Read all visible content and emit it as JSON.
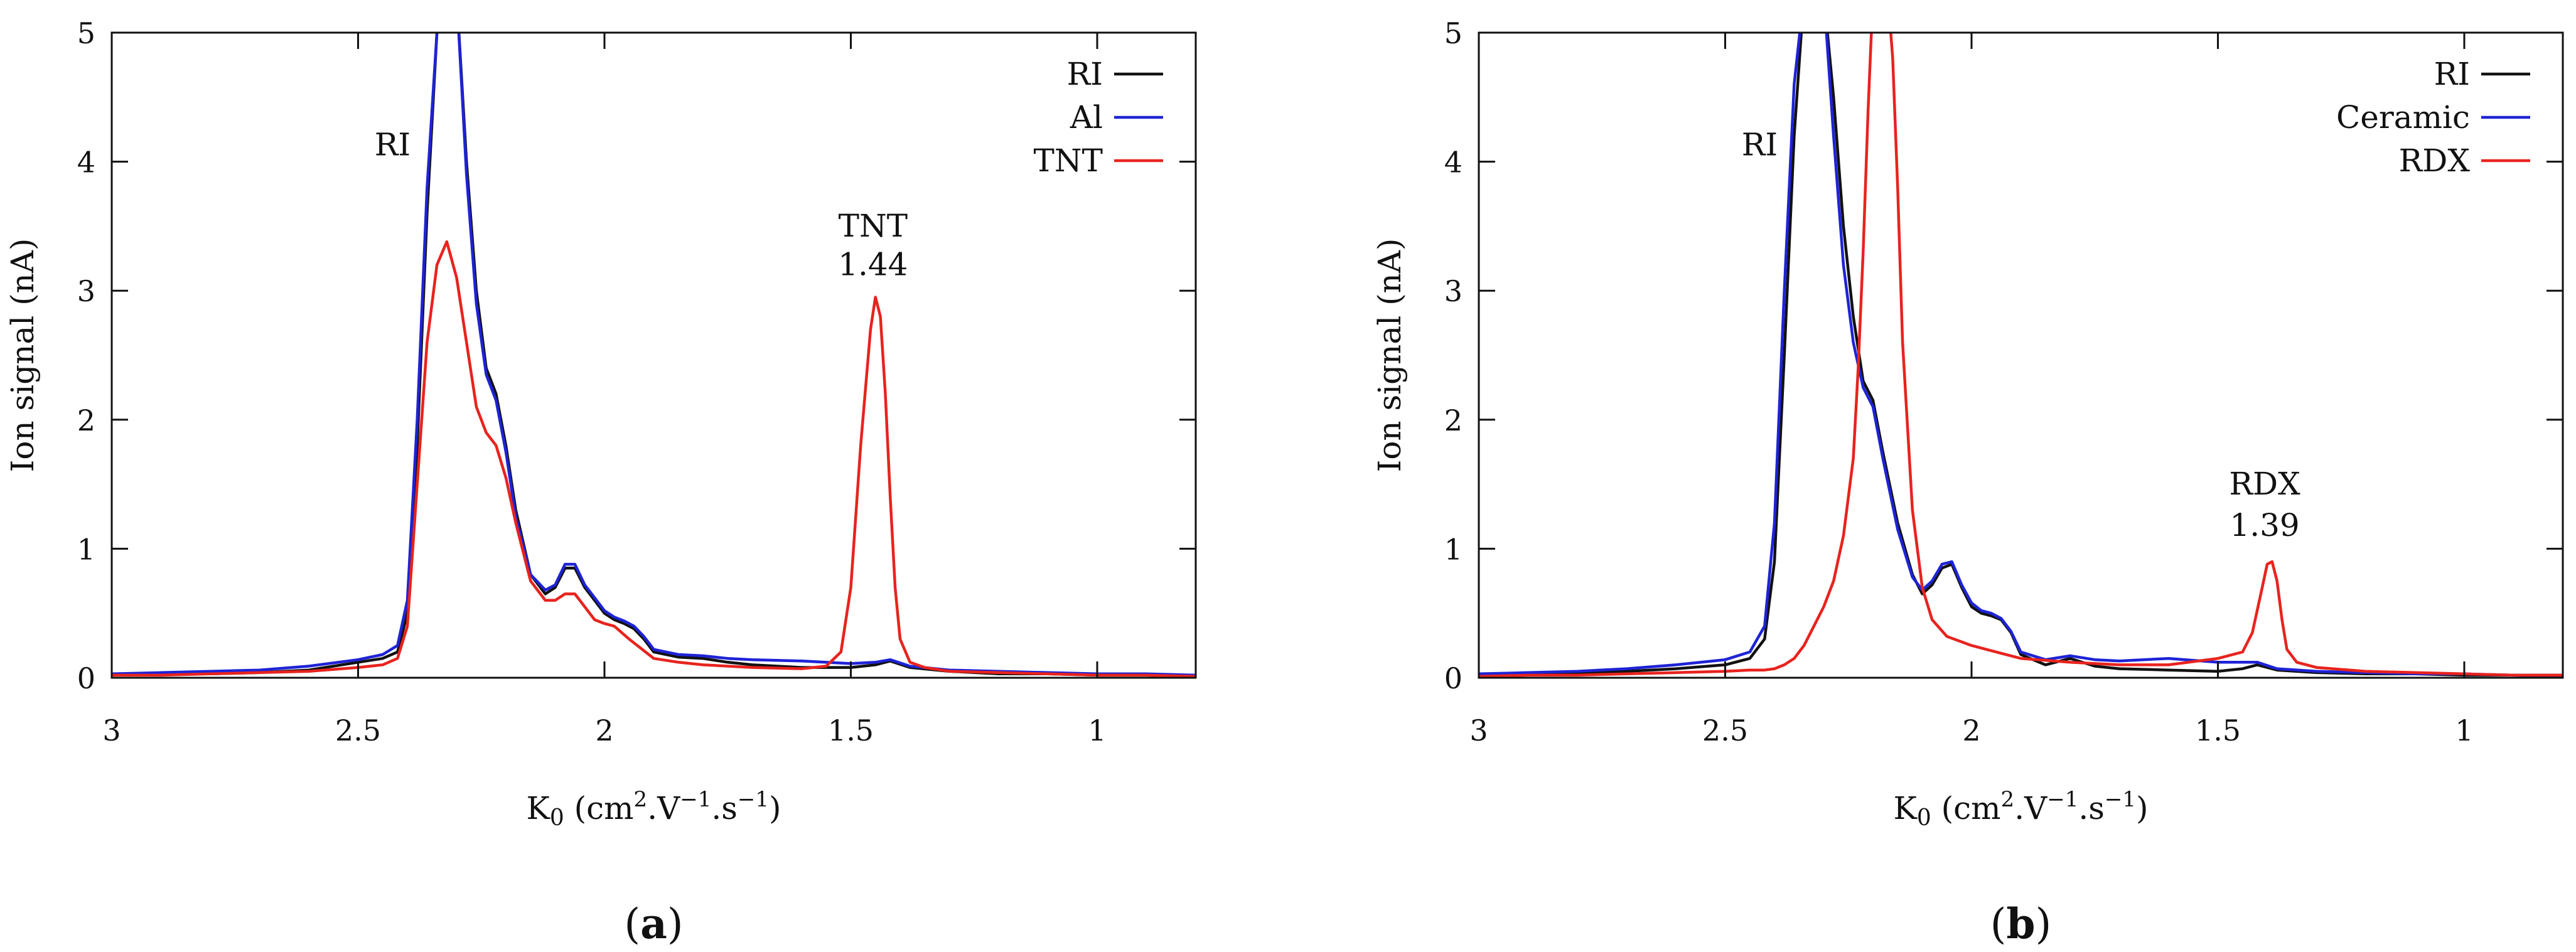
{
  "colors": {
    "black": "#111111",
    "blue": "#1e23d6",
    "red": "#e8231e"
  },
  "chart_data": [
    {
      "type": "line",
      "panel": "a",
      "caption": {
        "open": "(",
        "letter": "a",
        "close": ")"
      },
      "xlabel": {
        "main": "K",
        "sub": "0",
        "open": " (cm",
        "sup1": "2",
        "mid": ".V",
        "sup2": "−1",
        "mid2": ".s",
        "sup3": "−1",
        "close": ")"
      },
      "ylabel": "Ion signal (nA)",
      "xlim": [
        3.0,
        0.8
      ],
      "ylim": [
        0,
        5
      ],
      "x_reversed": true,
      "xticks": [
        3,
        2.5,
        2,
        1.5,
        1
      ],
      "xtick_labels": [
        "3",
        "2.5",
        "2",
        "1.5",
        "1"
      ],
      "yticks": [
        0,
        1,
        2,
        3,
        4,
        5
      ],
      "ytick_labels": [
        "0",
        "1",
        "2",
        "3",
        "4",
        "5"
      ],
      "legend_position": "top-right",
      "series": [
        {
          "name": "RI",
          "color": "#111111",
          "x": [
            3.0,
            2.9,
            2.8,
            2.7,
            2.6,
            2.5,
            2.45,
            2.42,
            2.4,
            2.38,
            2.36,
            2.34,
            2.32,
            2.3,
            2.28,
            2.26,
            2.24,
            2.22,
            2.2,
            2.18,
            2.15,
            2.12,
            2.1,
            2.08,
            2.06,
            2.04,
            2.02,
            2.0,
            1.98,
            1.96,
            1.94,
            1.92,
            1.9,
            1.85,
            1.8,
            1.75,
            1.7,
            1.6,
            1.5,
            1.45,
            1.42,
            1.38,
            1.3,
            1.2,
            1.1,
            1.0,
            0.9,
            0.8
          ],
          "y": [
            0.02,
            0.03,
            0.03,
            0.04,
            0.06,
            0.12,
            0.15,
            0.2,
            0.5,
            1.8,
            3.6,
            5.0,
            5.3,
            5.3,
            4.0,
            3.0,
            2.4,
            2.2,
            1.8,
            1.3,
            0.8,
            0.65,
            0.7,
            0.85,
            0.85,
            0.7,
            0.6,
            0.5,
            0.45,
            0.42,
            0.38,
            0.3,
            0.2,
            0.16,
            0.15,
            0.12,
            0.1,
            0.08,
            0.08,
            0.1,
            0.13,
            0.08,
            0.05,
            0.03,
            0.03,
            0.02,
            0.02,
            0.01
          ]
        },
        {
          "name": "Al",
          "color": "#1e23d6",
          "x": [
            3.0,
            2.9,
            2.8,
            2.7,
            2.6,
            2.5,
            2.45,
            2.42,
            2.4,
            2.38,
            2.36,
            2.34,
            2.32,
            2.3,
            2.28,
            2.26,
            2.24,
            2.22,
            2.2,
            2.18,
            2.15,
            2.12,
            2.1,
            2.08,
            2.06,
            2.04,
            2.02,
            2.0,
            1.98,
            1.96,
            1.94,
            1.92,
            1.9,
            1.85,
            1.8,
            1.75,
            1.7,
            1.6,
            1.5,
            1.45,
            1.42,
            1.38,
            1.3,
            1.2,
            1.1,
            1.0,
            0.9,
            0.8
          ],
          "y": [
            0.03,
            0.04,
            0.05,
            0.06,
            0.09,
            0.14,
            0.18,
            0.25,
            0.6,
            2.0,
            3.8,
            5.0,
            5.3,
            5.3,
            3.9,
            2.9,
            2.35,
            2.15,
            1.75,
            1.25,
            0.8,
            0.68,
            0.72,
            0.88,
            0.88,
            0.72,
            0.62,
            0.52,
            0.47,
            0.44,
            0.4,
            0.32,
            0.22,
            0.18,
            0.17,
            0.15,
            0.14,
            0.13,
            0.11,
            0.12,
            0.14,
            0.09,
            0.06,
            0.05,
            0.04,
            0.03,
            0.03,
            0.02
          ]
        },
        {
          "name": "TNT",
          "color": "#e8231e",
          "x": [
            3.0,
            2.9,
            2.8,
            2.7,
            2.6,
            2.5,
            2.45,
            2.42,
            2.4,
            2.38,
            2.36,
            2.34,
            2.32,
            2.3,
            2.28,
            2.26,
            2.24,
            2.22,
            2.2,
            2.18,
            2.15,
            2.12,
            2.1,
            2.08,
            2.06,
            2.04,
            2.02,
            2.0,
            1.98,
            1.95,
            1.9,
            1.85,
            1.8,
            1.7,
            1.6,
            1.55,
            1.52,
            1.5,
            1.48,
            1.46,
            1.45,
            1.44,
            1.43,
            1.42,
            1.41,
            1.4,
            1.38,
            1.35,
            1.3,
            1.2,
            1.1,
            1.0,
            0.9,
            0.8
          ],
          "y": [
            0.02,
            0.02,
            0.03,
            0.04,
            0.05,
            0.08,
            0.1,
            0.15,
            0.4,
            1.5,
            2.6,
            3.2,
            3.38,
            3.1,
            2.6,
            2.1,
            1.9,
            1.8,
            1.55,
            1.2,
            0.75,
            0.6,
            0.6,
            0.65,
            0.65,
            0.55,
            0.45,
            0.42,
            0.4,
            0.3,
            0.15,
            0.12,
            0.1,
            0.08,
            0.07,
            0.09,
            0.2,
            0.7,
            1.8,
            2.7,
            2.95,
            2.8,
            2.2,
            1.4,
            0.7,
            0.3,
            0.12,
            0.08,
            0.05,
            0.04,
            0.03,
            0.02,
            0.02,
            0.01
          ]
        }
      ],
      "annotations": [
        {
          "text": "RI",
          "x": 2.43,
          "y": 4.05
        },
        {
          "text": "TNT",
          "x": 1.455,
          "y": 3.42
        },
        {
          "text": "1.44",
          "x": 1.455,
          "y": 3.12
        }
      ]
    },
    {
      "type": "line",
      "panel": "b",
      "caption": {
        "open": "(",
        "letter": "b",
        "close": ")"
      },
      "xlabel": {
        "main": "K",
        "sub": "0",
        "open": " (cm",
        "sup1": "2",
        "mid": ".V",
        "sup2": "−1",
        "mid2": ".s",
        "sup3": "−1",
        "close": ")"
      },
      "ylabel": "Ion signal (nA)",
      "xlim": [
        3.0,
        0.8
      ],
      "ylim": [
        0,
        5
      ],
      "x_reversed": true,
      "xticks": [
        3,
        2.5,
        2,
        1.5,
        1
      ],
      "xtick_labels": [
        "3",
        "2.5",
        "2",
        "1.5",
        "1"
      ],
      "yticks": [
        0,
        1,
        2,
        3,
        4,
        5
      ],
      "ytick_labels": [
        "0",
        "1",
        "2",
        "3",
        "4",
        "5"
      ],
      "legend_position": "top-right",
      "series": [
        {
          "name": "RI",
          "color": "#111111",
          "x": [
            3.0,
            2.9,
            2.8,
            2.7,
            2.6,
            2.5,
            2.45,
            2.42,
            2.4,
            2.38,
            2.36,
            2.34,
            2.32,
            2.3,
            2.28,
            2.26,
            2.24,
            2.22,
            2.2,
            2.18,
            2.15,
            2.12,
            2.1,
            2.08,
            2.06,
            2.04,
            2.02,
            2.0,
            1.98,
            1.96,
            1.94,
            1.92,
            1.9,
            1.85,
            1.8,
            1.75,
            1.7,
            1.6,
            1.5,
            1.45,
            1.42,
            1.38,
            1.3,
            1.2,
            1.1,
            1.0,
            0.9,
            0.8
          ],
          "y": [
            0.02,
            0.03,
            0.04,
            0.05,
            0.07,
            0.1,
            0.15,
            0.3,
            0.9,
            2.5,
            4.2,
            5.3,
            5.3,
            5.3,
            4.5,
            3.5,
            2.8,
            2.3,
            2.15,
            1.75,
            1.2,
            0.8,
            0.65,
            0.72,
            0.85,
            0.88,
            0.7,
            0.55,
            0.5,
            0.48,
            0.45,
            0.35,
            0.18,
            0.1,
            0.15,
            0.09,
            0.07,
            0.06,
            0.05,
            0.07,
            0.1,
            0.06,
            0.04,
            0.03,
            0.03,
            0.02,
            0.02,
            0.01
          ]
        },
        {
          "name": "Ceramic",
          "color": "#1e23d6",
          "x": [
            3.0,
            2.9,
            2.8,
            2.7,
            2.6,
            2.5,
            2.45,
            2.42,
            2.4,
            2.38,
            2.36,
            2.34,
            2.32,
            2.3,
            2.28,
            2.26,
            2.24,
            2.22,
            2.2,
            2.18,
            2.15,
            2.12,
            2.1,
            2.08,
            2.06,
            2.04,
            2.02,
            2.0,
            1.98,
            1.96,
            1.94,
            1.92,
            1.9,
            1.85,
            1.8,
            1.75,
            1.7,
            1.6,
            1.5,
            1.45,
            1.42,
            1.38,
            1.3,
            1.2,
            1.1,
            1.0,
            0.9,
            0.8
          ],
          "y": [
            0.03,
            0.04,
            0.05,
            0.07,
            0.1,
            0.14,
            0.2,
            0.4,
            1.2,
            3.0,
            4.6,
            5.3,
            5.3,
            5.3,
            4.2,
            3.2,
            2.6,
            2.25,
            2.1,
            1.7,
            1.15,
            0.78,
            0.68,
            0.75,
            0.88,
            0.9,
            0.72,
            0.58,
            0.52,
            0.5,
            0.46,
            0.36,
            0.2,
            0.14,
            0.17,
            0.14,
            0.13,
            0.15,
            0.12,
            0.12,
            0.12,
            0.07,
            0.05,
            0.04,
            0.03,
            0.03,
            0.02,
            0.02
          ]
        },
        {
          "name": "RDX",
          "color": "#e8231e",
          "x": [
            3.0,
            2.9,
            2.8,
            2.7,
            2.6,
            2.5,
            2.45,
            2.42,
            2.4,
            2.38,
            2.36,
            2.34,
            2.32,
            2.3,
            2.28,
            2.26,
            2.24,
            2.23,
            2.22,
            2.21,
            2.2,
            2.19,
            2.18,
            2.17,
            2.16,
            2.15,
            2.14,
            2.12,
            2.1,
            2.08,
            2.05,
            2.0,
            1.95,
            1.9,
            1.8,
            1.7,
            1.6,
            1.5,
            1.45,
            1.43,
            1.41,
            1.4,
            1.39,
            1.38,
            1.37,
            1.36,
            1.34,
            1.3,
            1.2,
            1.1,
            1.0,
            0.9,
            0.8
          ],
          "y": [
            0.01,
            0.02,
            0.02,
            0.03,
            0.04,
            0.05,
            0.06,
            0.06,
            0.07,
            0.1,
            0.15,
            0.25,
            0.4,
            0.55,
            0.75,
            1.1,
            1.7,
            2.4,
            3.3,
            4.4,
            5.3,
            5.3,
            5.3,
            5.3,
            4.8,
            3.8,
            2.6,
            1.3,
            0.7,
            0.45,
            0.32,
            0.25,
            0.2,
            0.15,
            0.12,
            0.1,
            0.1,
            0.15,
            0.2,
            0.35,
            0.7,
            0.88,
            0.9,
            0.75,
            0.45,
            0.22,
            0.12,
            0.08,
            0.05,
            0.04,
            0.03,
            0.02,
            0.02
          ]
        }
      ],
      "annotations": [
        {
          "text": "RI",
          "x": 2.43,
          "y": 4.05
        },
        {
          "text": "RDX",
          "x": 1.405,
          "y": 1.42
        },
        {
          "text": "1.39",
          "x": 1.405,
          "y": 1.1
        }
      ]
    }
  ]
}
